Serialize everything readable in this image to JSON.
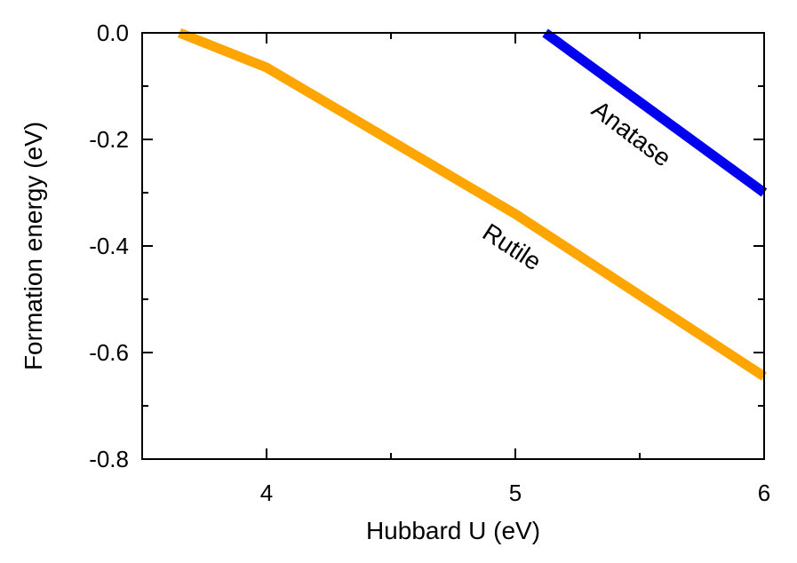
{
  "chart_data": {
    "type": "line",
    "title": "",
    "xlabel": "Hubbard U (eV)",
    "ylabel": "Formation energy (eV)",
    "xlim": [
      3.5,
      6
    ],
    "ylim": [
      -0.8,
      0
    ],
    "xticks": [
      {
        "value": 4,
        "label": "4"
      },
      {
        "value": 5,
        "label": "5"
      },
      {
        "value": 6,
        "label": "6"
      }
    ],
    "yticks": [
      {
        "value": 0,
        "label": "0.0"
      },
      {
        "value": -0.2,
        "label": "-0.2"
      },
      {
        "value": -0.4,
        "label": "-0.4"
      },
      {
        "value": -0.6,
        "label": "-0.6"
      },
      {
        "value": -0.8,
        "label": "-0.8"
      }
    ],
    "grid": false,
    "series": [
      {
        "name": "Rutile",
        "color": "#ffa500",
        "x": [
          3.65,
          4.0,
          5.0,
          6.0
        ],
        "y": [
          0.0,
          -0.065,
          -0.34,
          -0.645
        ]
      },
      {
        "name": "Anatase",
        "color": "#0000ee",
        "x": [
          5.12,
          6.0
        ],
        "y": [
          0.0,
          -0.3
        ]
      }
    ]
  }
}
